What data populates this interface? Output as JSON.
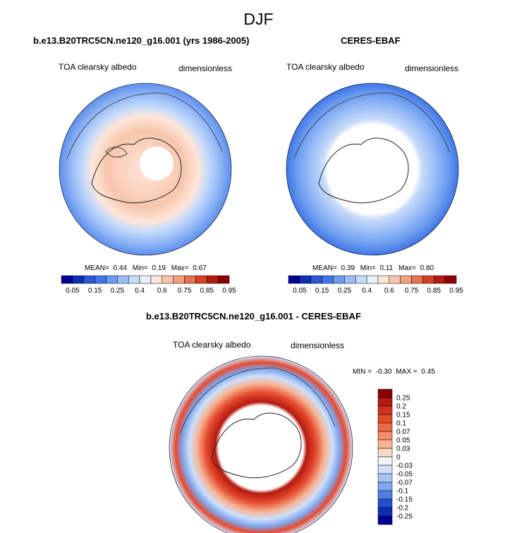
{
  "page": {
    "season": "DJF",
    "variable_label": "TOA clearsky albedo",
    "units_label": "dimensionless"
  },
  "chart_data": [
    {
      "type": "heatmap",
      "title": "b.e13.B20TRC5CN.ne120_g16.001 (yrs 1986-2005)",
      "projection": "north polar stereographic",
      "variable": "TOA clearsky albedo",
      "units": "dimensionless",
      "stats": {
        "mean_label": "MEAN=",
        "mean": "0.44",
        "min_label": "Min=",
        "min": "0.19",
        "max_label": "Max=",
        "max": "0.67"
      },
      "colorbar": {
        "levels": [
          "0.05",
          "0.15",
          "0.25",
          "0.4",
          "0.6",
          "0.75",
          "0.85",
          "0.95"
        ],
        "colors": [
          "#000099",
          "#0d2fb5",
          "#2b58d4",
          "#3f76e6",
          "#6b9cf0",
          "#9dbff7",
          "#c8dbfa",
          "#eaf1fc",
          "#fde6da",
          "#f8c6ac",
          "#f3a07c",
          "#e8714f",
          "#d64126",
          "#b51a10",
          "#8c0000"
        ]
      }
    },
    {
      "type": "heatmap",
      "title": "CERES-EBAF",
      "projection": "north polar stereographic",
      "variable": "TOA clearsky albedo",
      "units": "dimensionless",
      "stats": {
        "mean_label": "MEAN=",
        "mean": "0.39",
        "min_label": "Min=",
        "min": "0.11",
        "max_label": "Max=",
        "max": "0.80"
      },
      "colorbar": {
        "levels": [
          "0.05",
          "0.15",
          "0.25",
          "0.4",
          "0.6",
          "0.75",
          "0.85",
          "0.95"
        ],
        "colors": [
          "#000099",
          "#0d2fb5",
          "#2b58d4",
          "#3f76e6",
          "#6b9cf0",
          "#9dbff7",
          "#c8dbfa",
          "#eaf1fc",
          "#fde6da",
          "#f8c6ac",
          "#f3a07c",
          "#e8714f",
          "#d64126",
          "#b51a10",
          "#8c0000"
        ]
      }
    },
    {
      "type": "heatmap",
      "title": "b.e13.B20TRC5CN.ne120_g16.001 - CERES-EBAF",
      "projection": "north polar stereographic",
      "variable": "TOA clearsky albedo",
      "units": "dimensionless",
      "stats": {
        "min_label": "MIN =",
        "min": "-0.30",
        "max_label": "MAX =",
        "max": "0.45"
      },
      "colorbar": {
        "levels": [
          "0.25",
          "0.2",
          "0.15",
          "0.1",
          "0.07",
          "0.05",
          "0.03",
          "0",
          "-0.03",
          "-0.05",
          "-0.07",
          "-0.1",
          "-0.15",
          "-0.2",
          "-0.25"
        ],
        "colors": [
          "#8c0000",
          "#b51a10",
          "#d43020",
          "#e54a2e",
          "#ee6a45",
          "#f38e68",
          "#f7b495",
          "#fbd8c4",
          "#eef3fc",
          "#cfe0fa",
          "#a8c6f5",
          "#7fa6ee",
          "#4f7fe2",
          "#2550cc",
          "#0f2db0",
          "#000099"
        ]
      }
    }
  ]
}
